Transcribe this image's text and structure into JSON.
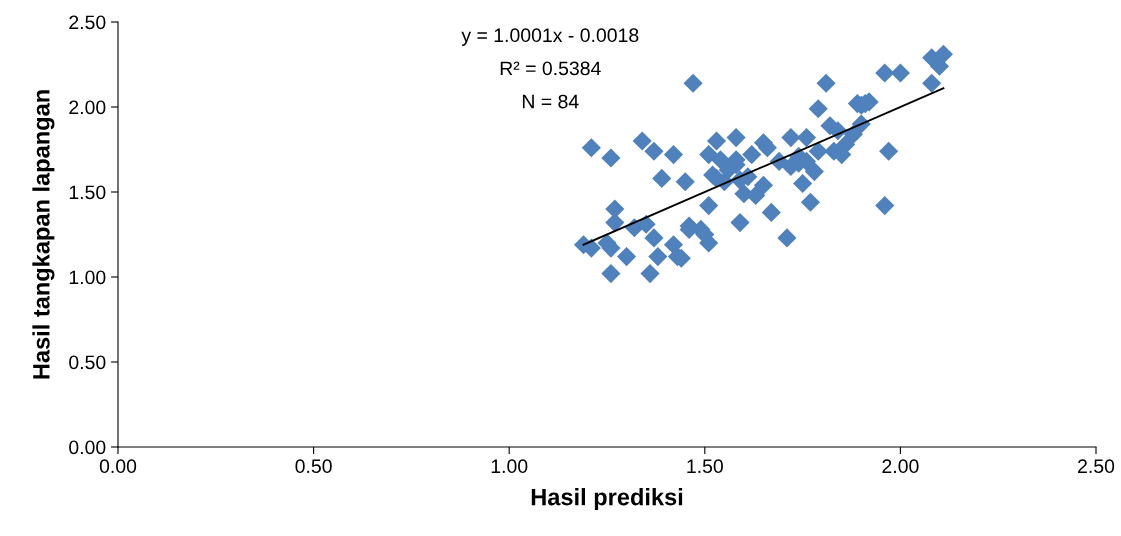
{
  "chart_data": {
    "type": "scatter",
    "xlabel": "Hasil prediksi",
    "ylabel": "Hasil tangkapan lapangan",
    "annotations": [
      "y = 1.0001x - 0.0018",
      "R² = 0.5384",
      "N = 84"
    ],
    "xlim": [
      0,
      2.5
    ],
    "xticks": [
      {
        "value": 0,
        "label": "0.00"
      },
      {
        "value": 0.5,
        "label": "0.50"
      },
      {
        "value": 1,
        "label": "1.00"
      },
      {
        "value": 1.5,
        "label": "1.50"
      },
      {
        "value": 2,
        "label": "2.00"
      },
      {
        "value": 2.5,
        "label": "2.50"
      }
    ],
    "ylim": [
      0,
      2.5
    ],
    "yticks": [
      {
        "value": 0,
        "label": "0.00"
      },
      {
        "value": 0.5,
        "label": "0.50"
      },
      {
        "value": 1,
        "label": "1.00"
      },
      {
        "value": 1.5,
        "label": "1.50"
      },
      {
        "value": 2,
        "label": "2.00"
      },
      {
        "value": 2.5,
        "label": "2.50"
      }
    ],
    "grid": false,
    "marker": "diamond",
    "series": [
      {
        "type": "scatter",
        "color": "#4f81bd",
        "x": [
          1.19,
          1.21,
          1.21,
          1.26,
          1.25,
          1.26,
          1.26,
          1.27,
          1.27,
          1.3,
          1.32,
          1.34,
          1.35,
          1.36,
          1.37,
          1.37,
          1.39,
          1.38,
          1.42,
          1.42,
          1.43,
          1.44,
          1.45,
          1.46,
          1.46,
          1.47,
          1.49,
          1.51,
          1.5,
          1.51,
          1.51,
          1.52,
          1.53,
          1.53,
          1.54,
          1.55,
          1.56,
          1.58,
          1.58,
          1.58,
          1.59,
          1.59,
          1.6,
          1.61,
          1.62,
          1.63,
          1.65,
          1.65,
          1.66,
          1.67,
          1.69,
          1.71,
          1.72,
          1.72,
          1.74,
          1.74,
          1.75,
          1.76,
          1.76,
          1.77,
          1.78,
          1.79,
          1.79,
          1.81,
          1.82,
          1.83,
          1.84,
          1.85,
          1.86,
          1.88,
          1.89,
          1.9,
          1.91,
          1.9,
          1.92,
          1.96,
          1.96,
          1.97,
          2.0,
          2.08,
          2.08,
          2.1,
          2.11
        ],
        "values": [
          1.19,
          1.17,
          1.76,
          1.7,
          1.2,
          1.17,
          1.02,
          1.32,
          1.4,
          1.12,
          1.29,
          1.8,
          1.31,
          1.02,
          1.23,
          1.74,
          1.58,
          1.12,
          1.72,
          1.19,
          1.12,
          1.11,
          1.56,
          1.3,
          1.28,
          2.14,
          1.28,
          1.2,
          1.25,
          1.42,
          1.72,
          1.6,
          1.58,
          1.8,
          1.69,
          1.56,
          1.63,
          1.82,
          1.66,
          1.69,
          1.57,
          1.32,
          1.49,
          1.59,
          1.72,
          1.48,
          1.54,
          1.79,
          1.76,
          1.38,
          1.68,
          1.23,
          1.82,
          1.65,
          1.71,
          1.67,
          1.55,
          1.82,
          1.68,
          1.44,
          1.62,
          1.74,
          1.99,
          2.14,
          1.89,
          1.74,
          1.86,
          1.72,
          1.78,
          1.84,
          2.02,
          2.01,
          2.02,
          1.9,
          2.03,
          2.2,
          1.42,
          1.74,
          2.2,
          2.14,
          2.29,
          2.24,
          2.31
        ]
      },
      {
        "type": "line",
        "color": "#000000",
        "marker": "none",
        "line_style": "solid",
        "x": [
          1.19,
          2.11
        ],
        "values": [
          1.19,
          2.11
        ]
      }
    ]
  }
}
